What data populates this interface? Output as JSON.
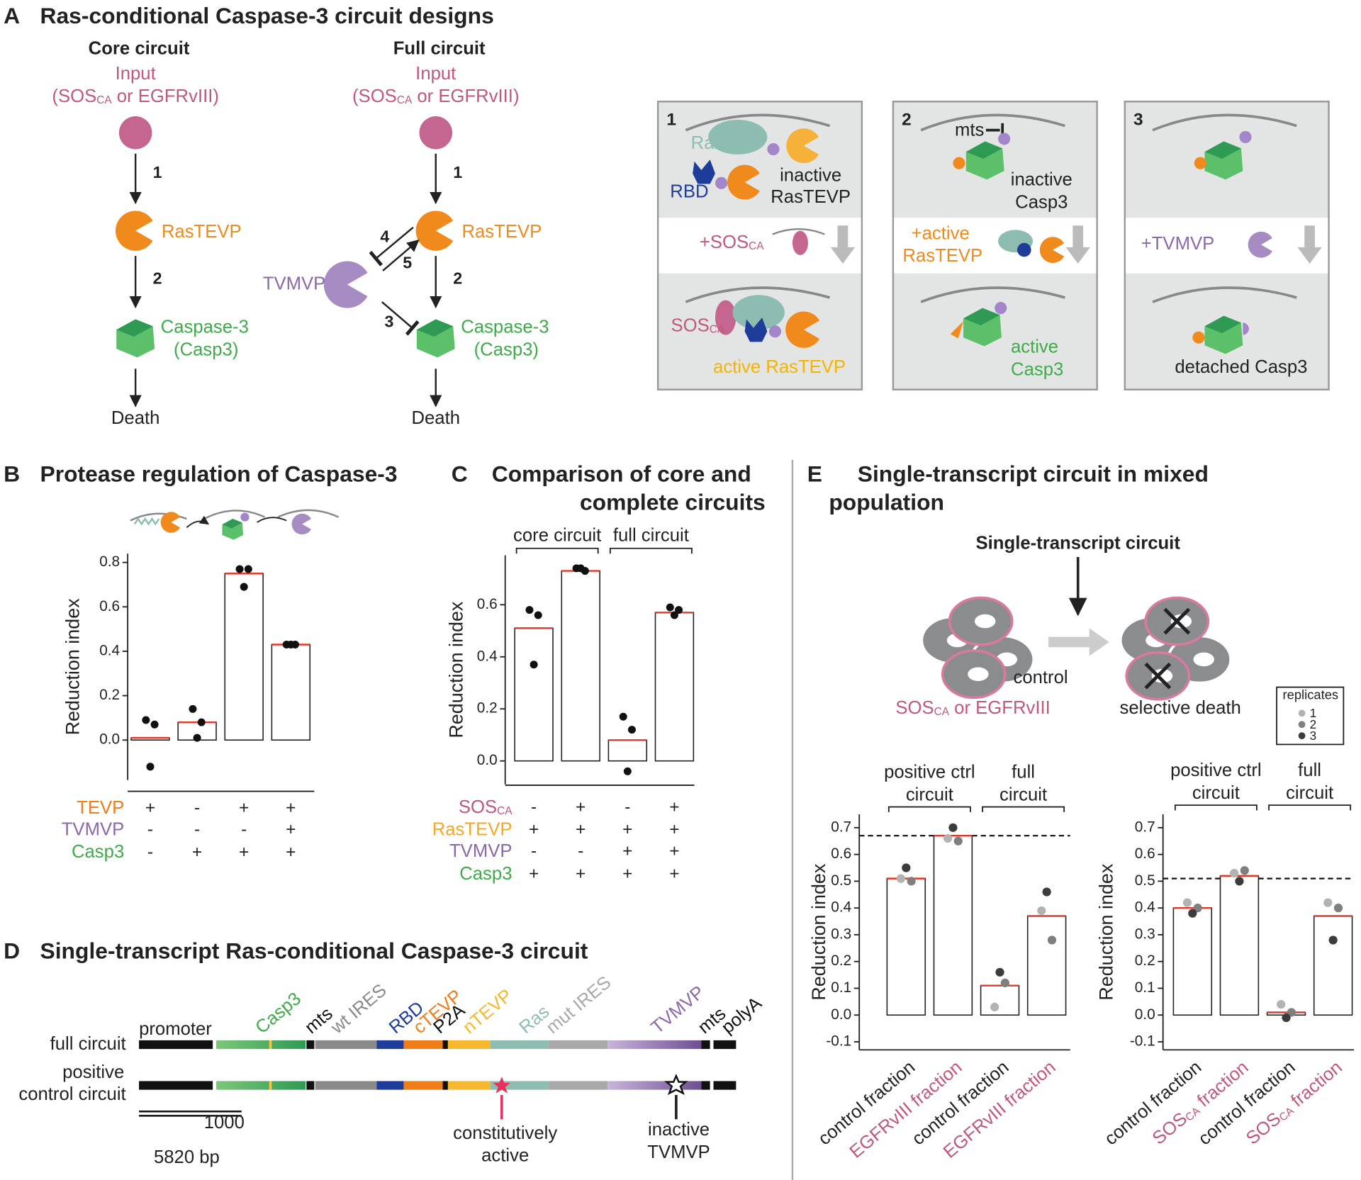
{
  "panel_a": {
    "label": "A",
    "title": "Ras-conditional Caspase-3 circuit designs",
    "core": {
      "title": "Core circuit",
      "input": "Input",
      "input_detail": [
        "(SOS",
        "CA",
        " or EGFRvIII)"
      ],
      "protease": "RasTEVP",
      "caspase": [
        "Caspase-3",
        "(Casp3)"
      ],
      "outcome": "Death",
      "steps": [
        "1",
        "2"
      ]
    },
    "full": {
      "title": "Full circuit",
      "input": "Input",
      "input_detail": [
        "(SOS",
        "CA",
        " or EGFRvIII)"
      ],
      "protease": "RasTEVP",
      "inhibitor": "TVMVP",
      "caspase": [
        "Caspase-3",
        "(Casp3)"
      ],
      "outcome": "Death",
      "steps": [
        "1",
        "2",
        "3",
        "4",
        "5"
      ]
    },
    "boxes": [
      {
        "number": "1",
        "labels": [
          "Ras",
          "RBD",
          "inactive",
          "RasTEVP"
        ],
        "step": [
          "+SOS",
          "CA"
        ],
        "result_input": [
          "SOS",
          "CA"
        ],
        "result": "active RasTEVP"
      },
      {
        "number": "2",
        "labels": [
          "mts",
          "inactive",
          "Casp3"
        ],
        "step": [
          "+active",
          "RasTEVP"
        ],
        "result": [
          "active",
          "Casp3"
        ]
      },
      {
        "number": "3",
        "step": "+TVMVP",
        "result": "detached Casp3"
      }
    ]
  },
  "panel_d": {
    "label": "D",
    "title": "Single-transcript Ras-conditional Caspase-3 circuit",
    "constructs": [
      "full circuit",
      [
        "positive",
        "control circuit"
      ]
    ],
    "promoter": "promoter",
    "elements": [
      {
        "name": "Casp3",
        "color": "#3fab4a"
      },
      {
        "name": "mts",
        "color": "#111111"
      },
      {
        "name": "wt IRES",
        "color": "#8a8a8a"
      },
      {
        "name": "RBD",
        "color": "#1e3c9a"
      },
      {
        "name": "cTEVP",
        "color": "#ee7d1a"
      },
      {
        "name": "P2A",
        "color": "#111111"
      },
      {
        "name": "nTEVP",
        "color": "#f5b82e"
      },
      {
        "name": "Ras",
        "color": "#8dbdb1"
      },
      {
        "name": "mut IRES",
        "color": "#a9a9a9"
      },
      {
        "name": "TVMVP",
        "color": "#8b68a8"
      },
      {
        "name": "mts",
        "color": "#111111"
      },
      {
        "name": "polyA",
        "color": "#111111"
      }
    ],
    "scale_bar_bp": 1000,
    "length_bp": {
      "value": 5820,
      "label": "5820 bp"
    },
    "mutations": [
      [
        "constitutively",
        "active"
      ],
      [
        "inactive",
        "TVMVP"
      ]
    ]
  },
  "panel_e": {
    "label": "E",
    "title": [
      "Single-transcript circuit in mixed",
      "population"
    ],
    "circuit": "Single-transcript circuit",
    "control": "control",
    "input": [
      "SOS",
      "CA",
      " or EGFRvIII"
    ],
    "outcome": "selective death",
    "legend_title": "replicates"
  },
  "chart_data": [
    {
      "type": "bar",
      "panel_label": "B",
      "title": "Protease regulation of Caspase-3",
      "ylabel": "Reduction index",
      "ylim": [
        -0.18,
        0.84
      ],
      "yticks": [
        {
          "value": 0,
          "label": "0.0"
        },
        0.2,
        0.4,
        0.6,
        0.8
      ],
      "values": [
        0.01,
        0.08,
        0.75,
        0.43
      ],
      "points": [
        [
          0.09,
          0.07,
          -0.12
        ],
        [
          0.14,
          0.08,
          0.01
        ],
        [
          0.77,
          0.77,
          0.69
        ],
        [
          0.43,
          0.43,
          0.43
        ]
      ],
      "bar_color": "#ffffff",
      "mean_color": "#e0392b",
      "point_color": "#111111",
      "conditions": [
        {
          "name": "TEVP",
          "color": "#ee7d1a",
          "marks": [
            "+",
            "-",
            "+",
            "+"
          ]
        },
        {
          "name": "TVMVP",
          "color": "#8b68a8",
          "marks": [
            "-",
            "-",
            "-",
            "+"
          ]
        },
        {
          "name": "Casp3",
          "color": "#3fab4a",
          "marks": [
            "-",
            "+",
            "+",
            "+"
          ]
        }
      ]
    },
    {
      "type": "bar",
      "panel_label": "C",
      "title": [
        "Comparison of core and",
        "complete circuits"
      ],
      "ylabel": "Reduction index",
      "ylim": [
        -0.09,
        0.79
      ],
      "yticks": [
        {
          "value": 0,
          "label": "0.0"
        },
        0.2,
        0.4,
        0.6
      ],
      "values": [
        0.51,
        0.73,
        0.08,
        0.57
      ],
      "points": [
        [
          0.58,
          0.56,
          0.37
        ],
        [
          0.74,
          0.73,
          0.74
        ],
        [
          0.17,
          0.12,
          -0.04
        ],
        [
          0.59,
          0.58,
          0.56
        ]
      ],
      "bar_color": "#ffffff",
      "mean_color": "#e0392b",
      "point_color": "#111111",
      "groups": [
        [
          "core circuit"
        ],
        [
          "full circuit"
        ]
      ],
      "conditions": [
        {
          "name": [
            "SOS",
            "CA"
          ],
          "color": "#c0587e",
          "marks": [
            "-",
            "+",
            "-",
            "+"
          ]
        },
        {
          "name": "RasTEVP",
          "color": "#f5a623",
          "marks": [
            "+",
            "+",
            "+",
            "+"
          ]
        },
        {
          "name": "TVMVP",
          "color": "#8b68a8",
          "marks": [
            "-",
            "-",
            "+",
            "+"
          ]
        },
        {
          "name": "Casp3",
          "color": "#3fab4a",
          "marks": [
            "+",
            "+",
            "+",
            "+"
          ]
        }
      ]
    },
    {
      "type": "bar",
      "ylabel": "Reduction index",
      "ylim": [
        -0.13,
        0.75
      ],
      "yticks": [
        -0.1,
        {
          "value": 0,
          "label": "0.0"
        },
        0.1,
        0.2,
        0.3,
        0.4,
        0.5,
        0.6,
        0.7
      ],
      "values": [
        0.51,
        0.67,
        0.11,
        0.37
      ],
      "reference_line": 0.67,
      "bar_color": "#ffffff",
      "mean_color": "#e0392b",
      "groups": [
        [
          "positive ctrl",
          "circuit"
        ],
        [
          "full",
          "circuit"
        ]
      ],
      "categories": [
        "control fraction",
        "EGFRvIII fraction",
        "control fraction",
        "EGFRvIII fraction"
      ],
      "category_colors": [
        "#222222",
        "#c0587e",
        "#222222",
        "#c0587e"
      ],
      "series": [
        {
          "name": "1",
          "color": "#b3b3b3",
          "values": [
            0.51,
            0.66,
            0.03,
            0.39
          ]
        },
        {
          "name": "2",
          "color": "#7f7f7f",
          "values": [
            0.5,
            0.65,
            0.12,
            0.28
          ]
        },
        {
          "name": "3",
          "color": "#3c3c3c",
          "values": [
            0.55,
            0.7,
            0.16,
            0.46
          ]
        }
      ]
    },
    {
      "type": "bar",
      "ylabel": "Reduction index",
      "ylim": [
        -0.13,
        0.75
      ],
      "yticks": [
        -0.1,
        {
          "value": 0,
          "label": "0.0"
        },
        0.1,
        0.2,
        0.3,
        0.4,
        0.5,
        0.6,
        0.7
      ],
      "values": [
        0.4,
        0.52,
        0.01,
        0.37
      ],
      "reference_line": 0.51,
      "bar_color": "#ffffff",
      "mean_color": "#e0392b",
      "groups": [
        [
          "positive ctrl",
          "circuit"
        ],
        [
          "full",
          "circuit"
        ]
      ],
      "categories": [
        "control fraction",
        [
          "SOS",
          "CA",
          " fraction"
        ],
        "control fraction",
        [
          "SOS",
          "CA",
          " fraction"
        ]
      ],
      "category_colors": [
        "#222222",
        "#c0587e",
        "#222222",
        "#c0587e"
      ],
      "series": [
        {
          "name": "1",
          "color": "#b3b3b3",
          "values": [
            0.42,
            0.53,
            0.04,
            0.42
          ]
        },
        {
          "name": "2",
          "color": "#7f7f7f",
          "values": [
            0.4,
            0.54,
            0.01,
            0.4
          ]
        },
        {
          "name": "3",
          "color": "#3c3c3c",
          "values": [
            0.38,
            0.5,
            -0.01,
            0.28
          ]
        }
      ]
    }
  ]
}
